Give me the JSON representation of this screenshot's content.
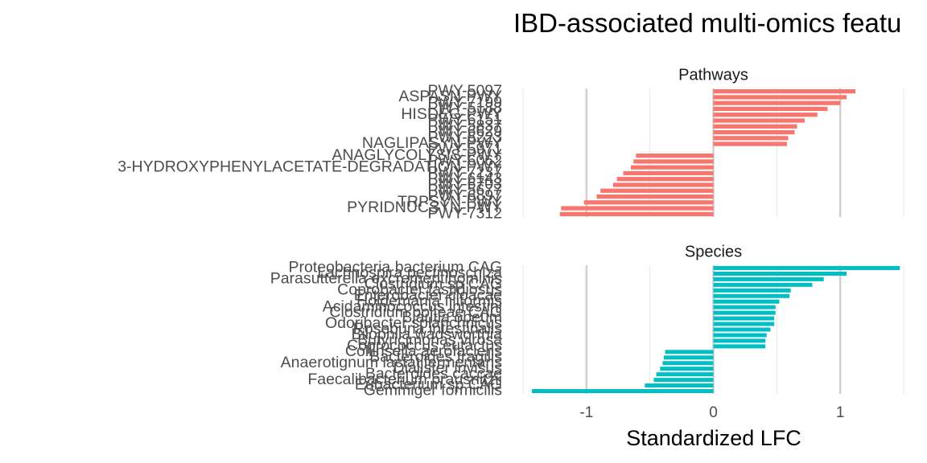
{
  "chart_data": {
    "type": "bar",
    "orientation": "horizontal",
    "title": "IBD-associated multi-omics featu",
    "xlabel": "Standardized LFC",
    "xlim": [
      -1.5,
      1.5
    ],
    "xticks": [
      "-1",
      "0",
      "1"
    ],
    "grid": true,
    "panels": [
      {
        "name": "Pathways",
        "color": "#F8766D",
        "categories": [
          "PWY-5097",
          "ASPASN-PWY",
          "PWY-7199",
          "PWY-5188",
          "HISDEG-PWY",
          "PWY-6151",
          "PWY-5837",
          "PWY-6629",
          "PWY-6223",
          "NAGLIPASYN-PWY",
          "PWY-5971",
          "ANAGLYCOLYSIS-PWY",
          "PWY-6062",
          "3-HYDROXYPHENYLACETATE-DEGRADATION-PWY",
          "PWY-7237",
          "PWY-6143",
          "PWY-6703",
          "PWY-5677",
          "PWY-6897",
          "TRPSYN-PWY",
          "PYRIDNUCSYN-PWY",
          "PWY-7312"
        ],
        "values": [
          1.12,
          1.05,
          1.0,
          0.9,
          0.82,
          0.72,
          0.66,
          0.64,
          0.59,
          0.58,
          0.0,
          -0.61,
          -0.63,
          -0.65,
          -0.71,
          -0.76,
          -0.79,
          -0.89,
          -0.92,
          -1.02,
          -1.2,
          -1.21
        ]
      },
      {
        "name": "Species",
        "color": "#00BFC4",
        "categories": [
          "Proteobacteria bacterium CAG",
          "Lachnospira pectinoschiza",
          "Parasutterella excrementihominis",
          "Clostridium sp CAG",
          "Coprobacter fastidiosus",
          "Enterobacter cloacae",
          "Holdemania filiformis",
          "Acidaminococcus intestini",
          "Clostridium bolteae CAG",
          "Blautia obeum",
          "Odoribacter splanchnicus",
          "Roseburia intestinalis",
          "Bilophila wadsworthia",
          "Butyricimonas virosa",
          "Coprococcus eutactus",
          "Collinsella aerofaciens",
          "Bacteroides fragilis",
          "Anaerotignum lactatifermentans",
          "Dialister invisus",
          "Bacteroides caccae",
          "Faecalibacterium prausnitzii",
          "Eubacterium sp CAG",
          "Gemmiger formicilis"
        ],
        "values": [
          1.47,
          1.05,
          0.87,
          0.78,
          0.61,
          0.6,
          0.52,
          0.49,
          0.49,
          0.48,
          0.48,
          0.45,
          0.42,
          0.41,
          0.41,
          -0.38,
          -0.39,
          -0.4,
          -0.42,
          -0.45,
          -0.47,
          -0.54,
          -1.43
        ]
      }
    ]
  }
}
